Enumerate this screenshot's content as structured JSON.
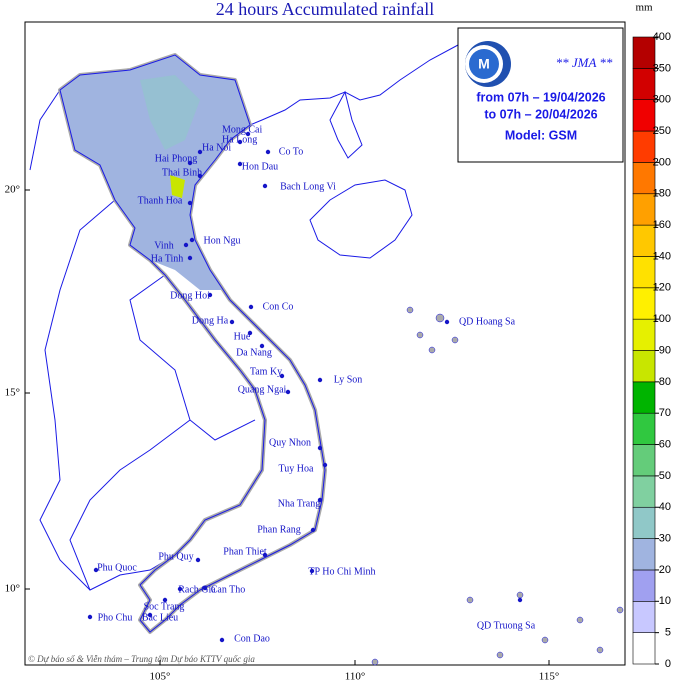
{
  "title": "24 hours Accumulated rainfall",
  "info": {
    "agency": "** JMA **",
    "from": "from 07h – 19/04/2026",
    "to": "to 07h – 20/04/2026",
    "model": "Model: GSM"
  },
  "latitude_labels": [
    "20°",
    "15°",
    "10°"
  ],
  "longitude_labels": [
    "105°",
    "110°",
    "115°"
  ],
  "places": [
    "Mong Cai",
    "Ha Long",
    "Ha Noi",
    "Hai Phong",
    "Thai Binh",
    "Hon Dau",
    "Co To",
    "Bach Long Vi",
    "Thanh Hoa",
    "Hon Ngu",
    "Vinh",
    "Ha Tinh",
    "Dong Hoi",
    "Con Co",
    "Dong Ha",
    "Hue",
    "Da Nang",
    "Tam Ky",
    "Ly Son",
    "Quang Ngai",
    "QD Hoang Sa",
    "Quy Nhon",
    "Tuy Hoa",
    "Nha Trang",
    "Phan Rang",
    "Phan Thiet",
    "TP Ho Chi Minh",
    "Phu Quy",
    "Phu Quoc",
    "Rach Gia",
    "Can Tho",
    "Soc Trang",
    "Pho Chu",
    "Bac Lieu",
    "Con Dao",
    "QD Truong Sa"
  ],
  "footer": "© Dự báo số & Viễn thám – Trung tâm Dự báo KTTV quốc gia",
  "legend": {
    "unit": "mm",
    "levels": [
      0,
      5,
      10,
      20,
      30,
      40,
      50,
      60,
      70,
      80,
      90,
      100,
      120,
      140,
      160,
      180,
      200,
      250,
      300,
      350,
      400
    ],
    "colors": [
      "#ffffff",
      "#c8c8ff",
      "#a0a0f0",
      "#a0b4e0",
      "#90c8c8",
      "#80d0a0",
      "#64cc7a",
      "#30c840",
      "#00b400",
      "#c8e600",
      "#e6f000",
      "#fff000",
      "#ffe100",
      "#ffc800",
      "#ffa000",
      "#ff7800",
      "#ff3c00",
      "#f00000",
      "#d20000",
      "#b40000"
    ]
  }
}
